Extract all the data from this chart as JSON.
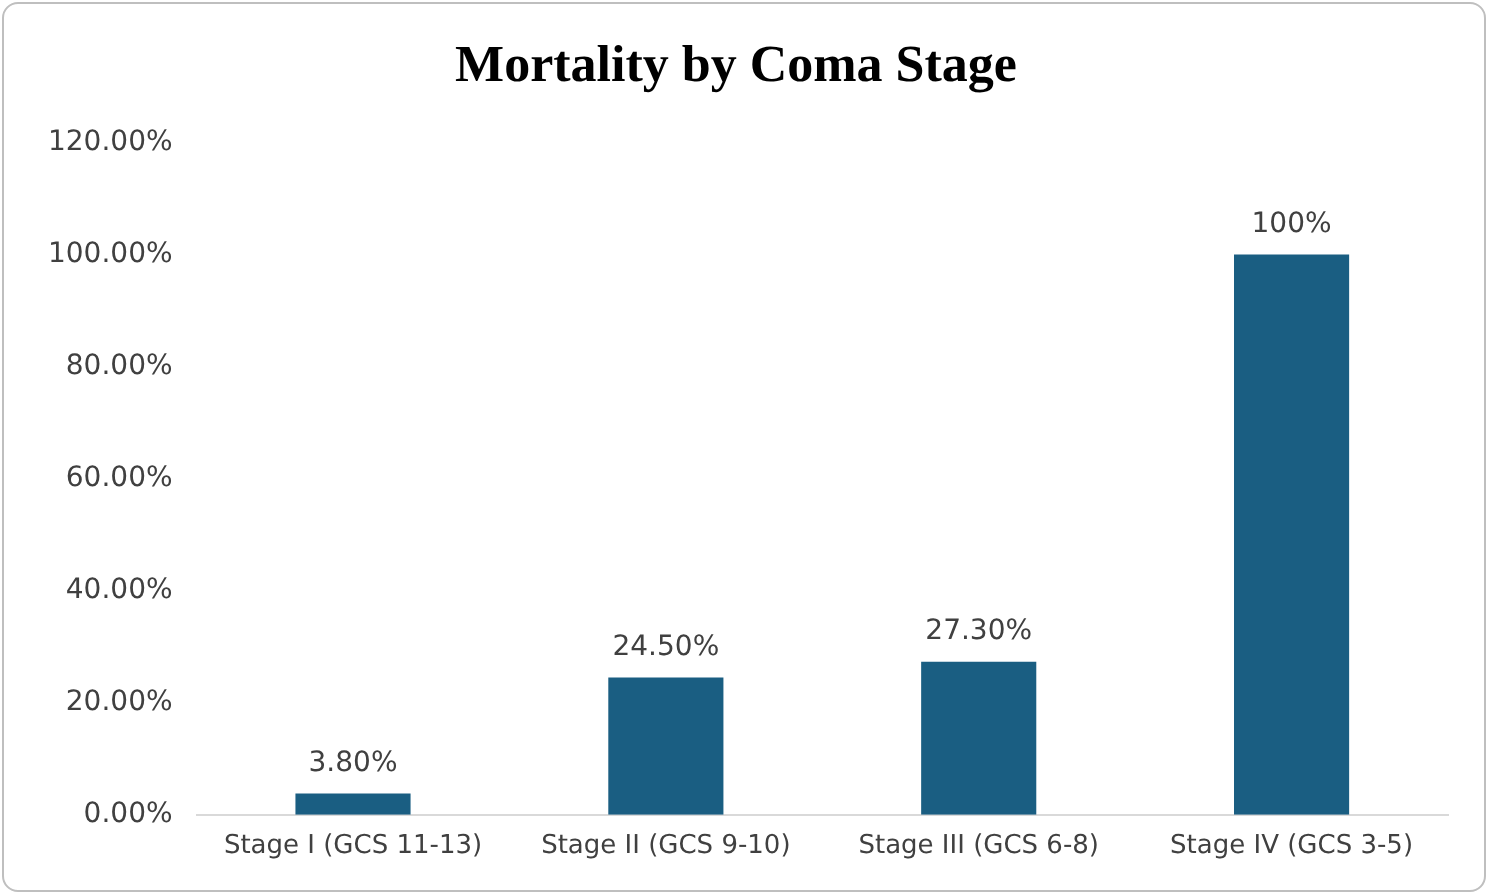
{
  "chart_data": {
    "type": "bar",
    "title": "Mortality by Coma Stage",
    "categories": [
      "Stage I (GCS 11-13)",
      "Stage II (GCS 9-10)",
      "Stage III (GCS 6-8)",
      "Stage IV (GCS 3-5)"
    ],
    "values": [
      3.8,
      24.5,
      27.3,
      100
    ],
    "value_labels": [
      "3.80%",
      "24.50%",
      "27.30%",
      "100%"
    ],
    "color": "#1a5e82",
    "ylim": [
      0,
      120
    ],
    "yticks": [
      {
        "value": 0,
        "label": "0.00%"
      },
      {
        "value": 20,
        "label": "20.00%"
      },
      {
        "value": 40,
        "label": "40.00%"
      },
      {
        "value": 60,
        "label": "60.00%"
      },
      {
        "value": 80,
        "label": "80.00%"
      },
      {
        "value": 100,
        "label": "100.00%"
      },
      {
        "value": 120,
        "label": "120.00%"
      }
    ],
    "grid": false,
    "legend": false
  }
}
